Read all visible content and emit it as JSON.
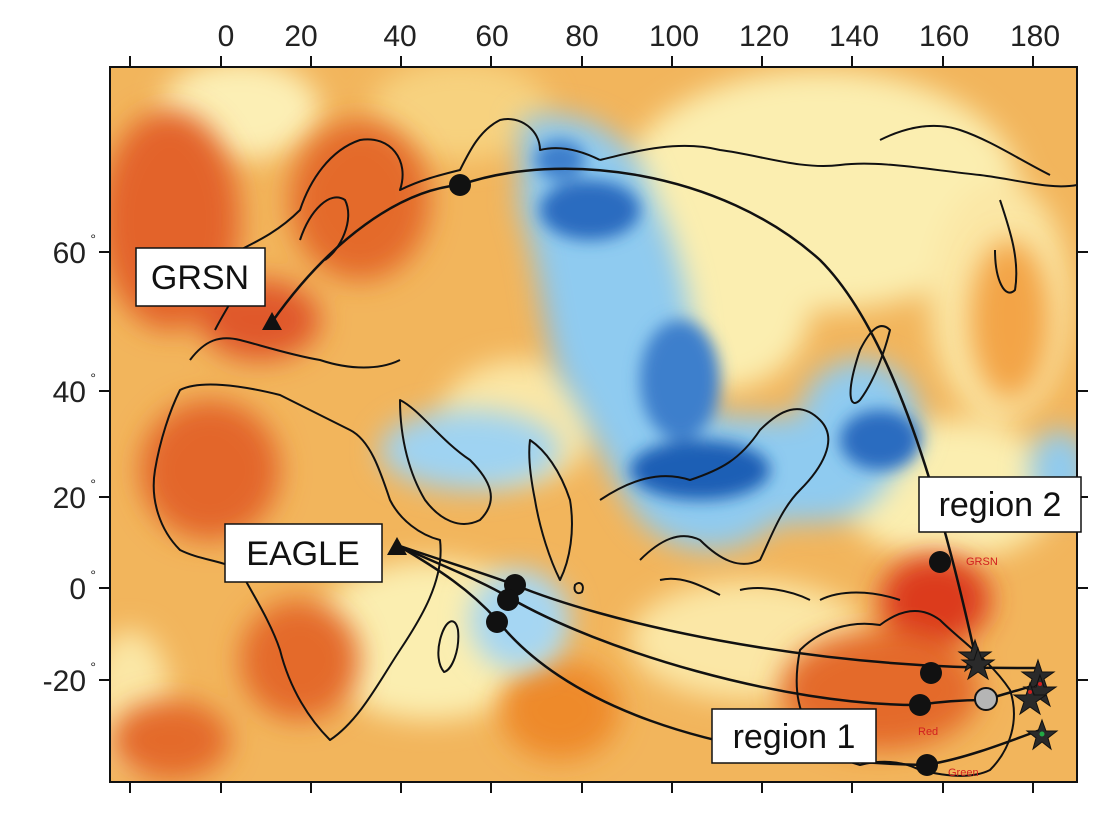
{
  "map": {
    "x_ticks": [
      "0",
      "20",
      "40",
      "60",
      "80",
      "100",
      "120",
      "140",
      "160",
      "180"
    ],
    "y_ticks": [
      "60",
      "40",
      "20",
      "0",
      "-20"
    ],
    "degree_symbol": "°",
    "labels": {
      "grsn": "GRSN",
      "eagle": "EAGLE",
      "region1": "region 1",
      "region2": "region 2"
    },
    "small_labels": {
      "grsn": "GRSN",
      "red": "Red",
      "green": "Green"
    },
    "colors": {
      "ocean_background": "#f0b25a",
      "fast_anomaly_dark": "#1f5fb5",
      "fast_anomaly_light": "#8fcbf0",
      "slow_anomaly_dark": "#d8431c",
      "slow_anomaly_mid": "#ee8a2a",
      "neutral": "#fbeeb0",
      "coastline": "#111111",
      "path": "#111111",
      "marker_red_text": "#d21f1f"
    }
  }
}
